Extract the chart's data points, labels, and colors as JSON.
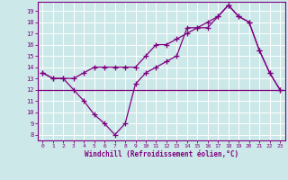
{
  "line1_x": [
    0,
    1,
    2,
    3,
    4,
    5,
    6,
    7,
    8,
    9,
    10,
    11,
    12,
    13,
    14,
    15,
    16,
    17,
    18,
    19,
    20,
    21,
    22,
    23
  ],
  "line1_y": [
    13.5,
    13.0,
    13.0,
    13.0,
    13.5,
    14.0,
    14.0,
    14.0,
    14.0,
    14.0,
    15.0,
    16.0,
    16.0,
    16.5,
    17.0,
    17.5,
    17.5,
    18.5,
    19.5,
    18.5,
    18.0,
    15.5,
    13.5,
    12.0
  ],
  "line2_x": [
    0,
    1,
    2,
    3,
    4,
    5,
    6,
    7,
    8,
    9,
    10,
    11,
    12,
    13,
    14,
    15,
    16,
    17,
    18,
    19,
    20,
    21,
    22,
    23
  ],
  "line2_y": [
    13.5,
    13.0,
    13.0,
    12.0,
    11.0,
    9.8,
    9.0,
    8.0,
    9.0,
    12.5,
    13.5,
    14.0,
    14.5,
    15.0,
    17.5,
    17.5,
    18.0,
    18.5,
    19.5,
    18.5,
    18.0,
    15.5,
    13.5,
    12.0
  ],
  "hline_y": 12.0,
  "line_color": "#800080",
  "bg_color": "#cce8e8",
  "grid_color": "#b0d8d8",
  "xlabel": "Windchill (Refroidissement éolien,°C)",
  "ylim": [
    7.5,
    19.8
  ],
  "xlim": [
    -0.5,
    23.5
  ],
  "yticks": [
    8,
    9,
    10,
    11,
    12,
    13,
    14,
    15,
    16,
    17,
    18,
    19
  ],
  "xticks": [
    0,
    1,
    2,
    3,
    4,
    5,
    6,
    7,
    8,
    9,
    10,
    11,
    12,
    13,
    14,
    15,
    16,
    17,
    18,
    19,
    20,
    21,
    22,
    23
  ]
}
